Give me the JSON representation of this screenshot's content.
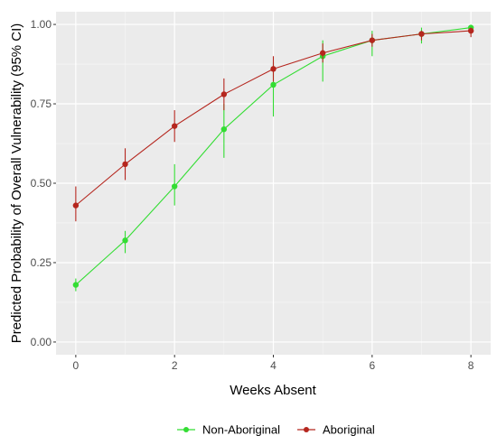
{
  "chart_data": {
    "type": "line",
    "title": "",
    "xlabel": "Weeks Absent",
    "ylabel": "Predicted Probability of Overall Vulnerability (95% CI)",
    "xlim": [
      -0.4,
      8.4
    ],
    "ylim": [
      -0.04,
      1.04
    ],
    "x_ticks": [
      0,
      2,
      4,
      6,
      8
    ],
    "y_ticks": [
      0.0,
      0.25,
      0.5,
      0.75,
      1.0
    ],
    "x_tick_labels": [
      "0",
      "2",
      "4",
      "6",
      "8"
    ],
    "y_tick_labels": [
      "0.00",
      "0.25",
      "0.50",
      "0.75",
      "1.00"
    ],
    "grid": true,
    "legend_position": "bottom",
    "x": [
      0,
      1,
      2,
      3,
      4,
      5,
      6,
      7,
      8
    ],
    "series": [
      {
        "name": "Non-Aboriginal",
        "color": "#33dd33",
        "values": [
          0.18,
          0.32,
          0.49,
          0.67,
          0.81,
          0.9,
          0.95,
          0.97,
          0.99
        ],
        "lower": [
          0.16,
          0.28,
          0.43,
          0.58,
          0.71,
          0.82,
          0.9,
          0.94,
          0.97
        ],
        "upper": [
          0.2,
          0.35,
          0.56,
          0.75,
          0.88,
          0.95,
          0.98,
          0.99,
          0.995
        ]
      },
      {
        "name": "Aboriginal",
        "color": "#b5261e",
        "values": [
          0.43,
          0.56,
          0.68,
          0.78,
          0.86,
          0.91,
          0.95,
          0.97,
          0.98
        ],
        "lower": [
          0.38,
          0.51,
          0.63,
          0.73,
          0.82,
          0.88,
          0.93,
          0.95,
          0.96
        ],
        "upper": [
          0.49,
          0.61,
          0.73,
          0.83,
          0.9,
          0.94,
          0.97,
          0.98,
          0.99
        ]
      }
    ]
  }
}
